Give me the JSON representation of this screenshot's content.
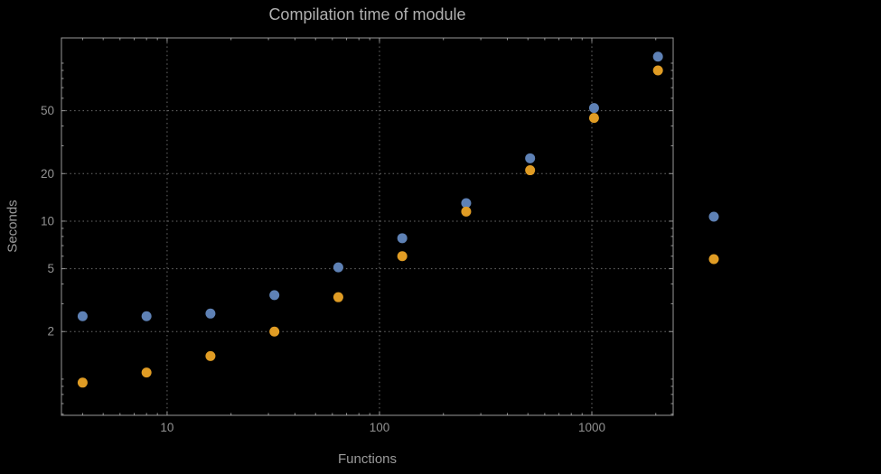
{
  "style": {
    "background": "#000000",
    "frame_color": "#999999",
    "grid_color": "#6e6e6e",
    "title_color": "#b0b0b0",
    "label_color": "#9a9a9a",
    "tick_text_color": "#929292"
  },
  "chart_data": {
    "type": "scatter",
    "title": "Compilation time of module",
    "xlabel": "Functions",
    "ylabel": "Seconds",
    "x_scale": "log",
    "y_scale": "log",
    "x_range": [
      3.18,
      2415
    ],
    "y_range": [
      0.59,
      144.5
    ],
    "x_ticks": [
      10,
      100,
      1000
    ],
    "y_ticks": [
      2,
      5,
      10,
      20,
      50
    ],
    "grid": true,
    "marker_radius": 5.5,
    "series": [
      {
        "name": "series-1-blue",
        "color": "#5e81b5",
        "x": [
          4,
          8,
          16,
          32,
          64,
          128,
          256,
          512,
          1024,
          2048
        ],
        "y": [
          2.5,
          2.5,
          2.6,
          3.4,
          5.1,
          7.8,
          13,
          25,
          52,
          110
        ]
      },
      {
        "name": "series-2-orange",
        "color": "#e09c24",
        "x": [
          4,
          8,
          16,
          32,
          64,
          128,
          256,
          512,
          1024,
          2048
        ],
        "y": [
          0.95,
          1.1,
          1.4,
          2.0,
          3.3,
          6.0,
          11.5,
          21,
          45,
          90
        ]
      }
    ],
    "legend": {
      "position": "right",
      "entries": [
        {
          "color": "#5e81b5"
        },
        {
          "color": "#e09c24"
        }
      ]
    }
  }
}
